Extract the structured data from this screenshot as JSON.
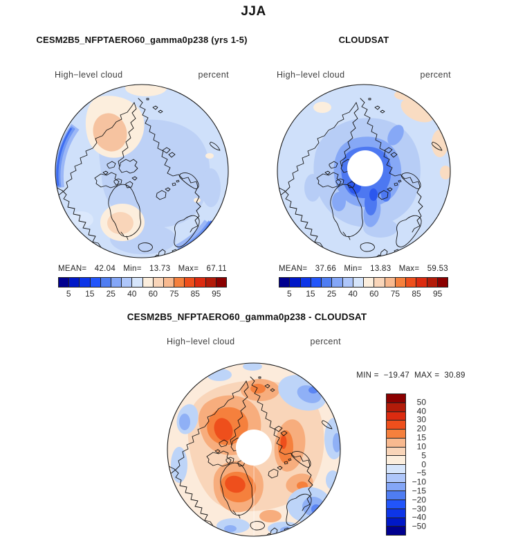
{
  "figure": {
    "title": "JJA"
  },
  "panels": {
    "model": {
      "title": "CESM2B5_NFPTAERO60_gamma0p238 (yrs 1-5)",
      "field_label": "High−level cloud",
      "units_label": "percent",
      "stats": {
        "mean_label": "MEAN=",
        "mean": "42.04",
        "min_label": "Min=",
        "min": "13.73",
        "max_label": "Max=",
        "max": "67.11"
      }
    },
    "cloudsat": {
      "title": "CLOUDSAT",
      "field_label": "High−level cloud",
      "units_label": "percent",
      "stats": {
        "mean_label": "MEAN=",
        "mean": "37.66",
        "min_label": "Min=",
        "min": "13.83",
        "max_label": "Max=",
        "max": "59.53"
      }
    },
    "difference": {
      "title": "CESM2B5_NFPTAERO60_gamma0p238 - CLOUDSAT",
      "field_label": "High−level cloud",
      "units_label": "percent",
      "minmax": {
        "min_label": "MIN =",
        "min": "−19.47",
        "max_label": "MAX =",
        "max": "30.89"
      }
    }
  },
  "colorbars": {
    "percent": {
      "orientation": "horizontal",
      "colors": [
        "#00008f",
        "#0018c8",
        "#0d35e8",
        "#2255fa",
        "#4f7df2",
        "#84a6f7",
        "#aec6fa",
        "#d6e5fb",
        "#fceedd",
        "#f9d5b9",
        "#f8b98f",
        "#f5803d",
        "#ee4f1c",
        "#dc2b10",
        "#b31b09",
        "#8b0000"
      ],
      "tick_labels": [
        "5",
        "15",
        "25",
        "40",
        "60",
        "75",
        "85",
        "95"
      ]
    },
    "difference": {
      "orientation": "vertical",
      "colors": [
        "#8b0000",
        "#b31b09",
        "#dc2b10",
        "#ee4f1c",
        "#f5803d",
        "#f8b98f",
        "#f9d5b9",
        "#fceedd",
        "#d6e5fb",
        "#aec6fa",
        "#84a6f7",
        "#4f7df2",
        "#2255fa",
        "#0d35e8",
        "#0018c8",
        "#00008f"
      ],
      "tick_labels": [
        "50",
        "40",
        "30",
        "20",
        "15",
        "10",
        "5",
        "0",
        "−5",
        "−10",
        "−15",
        "−20",
        "−30",
        "−40",
        "−50"
      ]
    }
  },
  "chart_data": [
    {
      "type": "heatmap",
      "subtype": "filled-contour polar stereographic map (Arctic, pole-centered)",
      "panel": "model",
      "season": "JJA",
      "title": "CESM2B5_NFPTAERO60_gamma0p238 (yrs 1-5)",
      "variable": "High-level cloud",
      "units": "percent",
      "stats": {
        "mean": 42.04,
        "min": 13.73,
        "max": 67.11
      },
      "contour_levels": [
        5,
        10,
        15,
        20,
        25,
        30,
        40,
        50,
        60,
        70,
        75,
        80,
        85,
        90,
        95
      ],
      "colorbar_tick_labels": [
        5,
        15,
        25,
        40,
        60,
        75,
        85,
        95
      ],
      "palette": [
        "#00008f",
        "#0018c8",
        "#0d35e8",
        "#2255fa",
        "#4f7df2",
        "#84a6f7",
        "#aec6fa",
        "#d6e5fb",
        "#fceedd",
        "#f9d5b9",
        "#f8b98f",
        "#f5803d",
        "#ee4f1c",
        "#dc2b10",
        "#b31b09",
        "#8b0000"
      ],
      "legend_position": "horizontal colorbar below map",
      "notes": "mostly 30-50% (light blues) over Arctic; ~50-60% (peach/salmon) patches over Bering/Alaska and Greenland; >55% darker blue slivers at left and lower-right rim"
    },
    {
      "type": "heatmap",
      "subtype": "filled-contour polar stereographic map (Arctic, pole-centered)",
      "panel": "cloudsat",
      "season": "JJA",
      "title": "CLOUDSAT",
      "variable": "High-level cloud",
      "units": "percent",
      "stats": {
        "mean": 37.66,
        "min": 13.83,
        "max": 59.53
      },
      "contour_levels": [
        5,
        10,
        15,
        20,
        25,
        30,
        40,
        50,
        60,
        70,
        75,
        80,
        85,
        90,
        95
      ],
      "colorbar_tick_labels": [
        5,
        15,
        25,
        40,
        60,
        75,
        85,
        95
      ],
      "palette": [
        "#00008f",
        "#0018c8",
        "#0d35e8",
        "#2255fa",
        "#4f7df2",
        "#84a6f7",
        "#aec6fa",
        "#d6e5fb",
        "#fceedd",
        "#f9d5b9",
        "#f8b98f",
        "#f5803d",
        "#ee4f1c",
        "#dc2b10",
        "#b31b09",
        "#8b0000"
      ],
      "legend_position": "horizontal colorbar below map",
      "pole_data_gap": true,
      "notes": "low values (deep blues, 15-25%) ringing the pole around white no-data circle; cream patches (50-60%) at upper-right rim"
    },
    {
      "type": "heatmap",
      "subtype": "filled-contour polar stereographic difference map (Arctic, pole-centered)",
      "panel": "difference",
      "season": "JJA",
      "title": "CESM2B5_NFPTAERO60_gamma0p238 - CLOUDSAT",
      "variable": "High-level cloud",
      "units": "percent",
      "stats": {
        "min": -19.47,
        "max": 30.89
      },
      "contour_levels": [
        -50,
        -40,
        -30,
        -20,
        -15,
        -10,
        -5,
        0,
        5,
        10,
        15,
        20,
        30,
        40,
        50
      ],
      "colorbar_tick_labels": [
        50,
        40,
        30,
        20,
        15,
        10,
        5,
        0,
        -5,
        -10,
        -15,
        -20,
        -30,
        -40,
        -50
      ],
      "palette_top_to_bottom": [
        "#8b0000",
        "#b31b09",
        "#dc2b10",
        "#ee4f1c",
        "#f5803d",
        "#f8b98f",
        "#f9d5b9",
        "#fceedd",
        "#d6e5fb",
        "#aec6fa",
        "#84a6f7",
        "#4f7df2",
        "#2255fa",
        "#0d35e8",
        "#0018c8",
        "#00008f"
      ],
      "legend_position": "vertical colorbar right of map",
      "pole_data_gap": true,
      "notes": "positive differences (+10 to +20, oranges/reds) over central Arctic, strongest over Canadian Archipelago and Greenland flanks; negative (-5 to -15, blues) around outer rim"
    }
  ]
}
